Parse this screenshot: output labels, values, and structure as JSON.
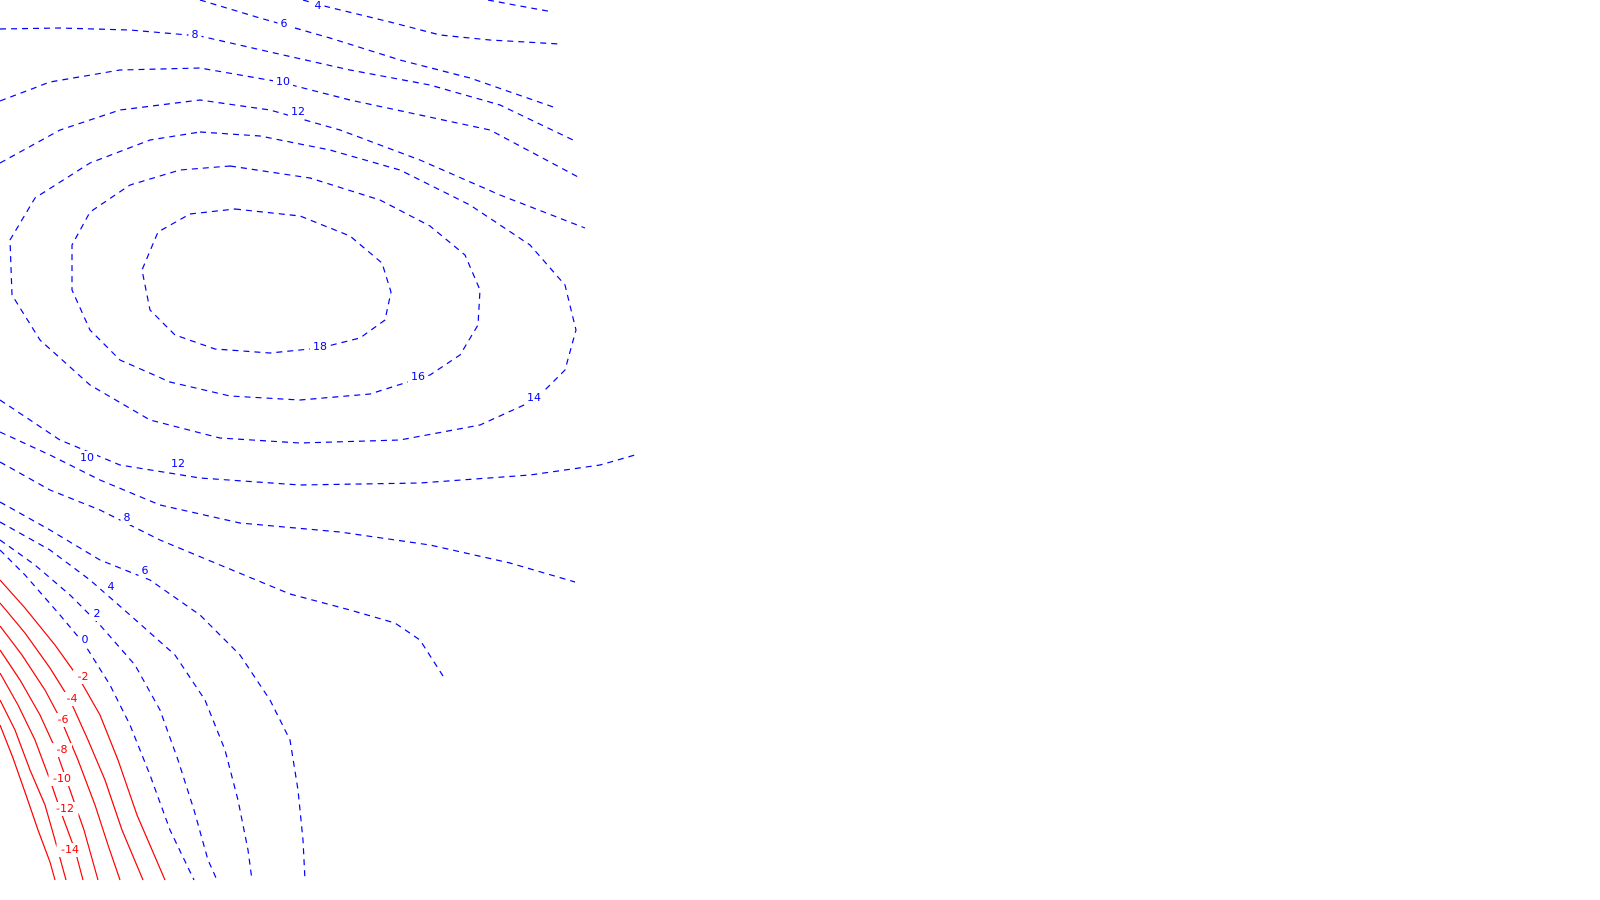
{
  "chart_data": {
    "type": "contour",
    "grid": false,
    "colors": {
      "positive": "#0000ff",
      "negative": "#ff0000"
    },
    "line_styles": {
      "positive": "dashed",
      "negative": "solid"
    },
    "levels": [
      {
        "value": 18,
        "label": "18"
      },
      {
        "value": 16,
        "label": "16"
      },
      {
        "value": 14,
        "label": "14"
      },
      {
        "value": 12,
        "label": "12"
      },
      {
        "value": 10,
        "label": "10"
      },
      {
        "value": 8,
        "label": "8"
      },
      {
        "value": 6,
        "label": "6"
      },
      {
        "value": 4,
        "label": "4"
      },
      {
        "value": 2,
        "label": "2"
      },
      {
        "value": 0,
        "label": "0"
      },
      {
        "value": -2,
        "label": "-2"
      },
      {
        "value": -4,
        "label": "-4"
      },
      {
        "value": -6,
        "label": "-6"
      },
      {
        "value": -8,
        "label": "-8"
      },
      {
        "value": -10,
        "label": "-10"
      },
      {
        "value": -12,
        "label": "-12"
      },
      {
        "value": -14,
        "label": "-14"
      }
    ]
  }
}
